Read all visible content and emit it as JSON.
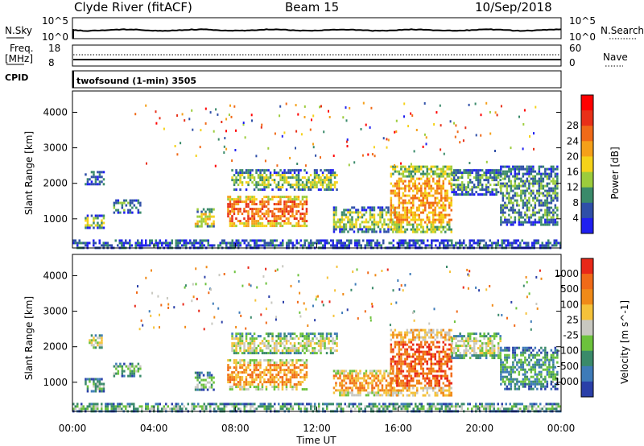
{
  "header": {
    "station": "Clyde River (fitACF)",
    "beam": "Beam 15",
    "date": "10/Sep/2018"
  },
  "top_panels": {
    "nsky_label": "N.Sky",
    "nsky_ticks": [
      "10^5",
      "10^0"
    ],
    "nsearch_label": "N.Search",
    "nsearch_ticks": [
      "10^5",
      "10^0"
    ],
    "freq_label": "Freq.",
    "freq_unit": "[MHz]",
    "freq_ticks": [
      "18",
      "8"
    ],
    "nave_label": "Nave",
    "nave_ticks": [
      "60",
      "0"
    ],
    "cpid_label": "CPID",
    "cpid_text": "twofsound (1-min) 3505"
  },
  "chart_data": [
    {
      "type": "heatmap",
      "name": "power",
      "ylabel": "Slant Range [km]",
      "xlabel": "Time UT",
      "x_ticks": [
        "00:00",
        "04:00",
        "08:00",
        "12:00",
        "16:00",
        "20:00",
        "00:00"
      ],
      "xlim_hours": [
        0,
        24
      ],
      "y_ticks": [
        1000,
        2000,
        3000,
        4000
      ],
      "ylim_km": [
        180,
        4600
      ],
      "colorbar_label": "Power [dB]",
      "colorbar_ticks": [
        "4",
        "8",
        "12",
        "16",
        "20",
        "24",
        "28"
      ],
      "colorbar_colors": [
        "#1f1ff0",
        "#2f4fa8",
        "#3a8a6a",
        "#9ccc3c",
        "#f5d21a",
        "#f5a01a",
        "#f06a18",
        "#e83018",
        "#ff0000"
      ],
      "regions": [
        {
          "t0": 0.6,
          "t1": 1.5,
          "r0": 2000,
          "r1": 2350,
          "level": 1
        },
        {
          "t0": 0.6,
          "t1": 1.5,
          "r0": 760,
          "r1": 1120,
          "level": 3
        },
        {
          "t0": 2.0,
          "t1": 3.3,
          "r0": 1150,
          "r1": 1550,
          "level": 2
        },
        {
          "t0": 6.0,
          "t1": 6.9,
          "r0": 800,
          "r1": 1300,
          "level": 4
        },
        {
          "t0": 7.6,
          "t1": 11.5,
          "r0": 800,
          "r1": 1650,
          "level": 6
        },
        {
          "t0": 7.8,
          "t1": 13.0,
          "r0": 1800,
          "r1": 2400,
          "level": 3
        },
        {
          "t0": 12.8,
          "t1": 16.0,
          "r0": 650,
          "r1": 1350,
          "level": 3
        },
        {
          "t0": 15.6,
          "t1": 18.6,
          "r0": 650,
          "r1": 2500,
          "level": 5
        },
        {
          "t0": 18.6,
          "t1": 21.0,
          "r0": 1700,
          "r1": 2400,
          "level": 2
        },
        {
          "t0": 21.0,
          "t1": 23.8,
          "r0": 800,
          "r1": 2500,
          "level": 2
        },
        {
          "t0": 0.0,
          "t1": 24.0,
          "r0": 200,
          "r1": 420,
          "level": 1
        }
      ]
    },
    {
      "type": "heatmap",
      "name": "velocity",
      "ylabel": "Slant Range [km]",
      "xlabel": "Time UT",
      "x_ticks": [
        "00:00",
        "04:00",
        "08:00",
        "12:00",
        "16:00",
        "20:00",
        "00:00"
      ],
      "xlim_hours": [
        0,
        24
      ],
      "y_ticks": [
        1000,
        2000,
        3000,
        4000
      ],
      "ylim_km": [
        180,
        4600
      ],
      "colorbar_label": "Velocity [m s^-1]",
      "colorbar_ticks": [
        "1000",
        "500",
        "100",
        "25",
        "-25",
        "-100",
        "-500",
        "-1000"
      ],
      "colorbar_colors": [
        "#2a3fa8",
        "#3e7bb8",
        "#3a8a6a",
        "#6cc23c",
        "#c8c8c0",
        "#f5c23a",
        "#f08a18",
        "#f06a18",
        "#e82818"
      ],
      "regions": [
        {
          "t0": 0.6,
          "t1": 1.5,
          "r0": 760,
          "r1": 1120,
          "level": 3
        },
        {
          "t0": 2.0,
          "t1": 3.3,
          "r0": 1150,
          "r1": 1550,
          "level": 3
        },
        {
          "t0": 0.8,
          "t1": 1.4,
          "r0": 2000,
          "r1": 2350,
          "level": 4
        },
        {
          "t0": 6.0,
          "t1": 6.9,
          "r0": 800,
          "r1": 1300,
          "level": 3
        },
        {
          "t0": 7.6,
          "t1": 11.5,
          "r0": 800,
          "r1": 1650,
          "level": 6
        },
        {
          "t0": 7.8,
          "t1": 13.0,
          "r0": 1800,
          "r1": 2400,
          "level": 4
        },
        {
          "t0": 12.8,
          "t1": 16.0,
          "r0": 650,
          "r1": 1350,
          "level": 6
        },
        {
          "t0": 15.6,
          "t1": 18.6,
          "r0": 650,
          "r1": 2500,
          "level": 7
        },
        {
          "t0": 18.6,
          "t1": 21.0,
          "r0": 1700,
          "r1": 2400,
          "level": 4
        },
        {
          "t0": 21.0,
          "t1": 23.8,
          "r0": 800,
          "r1": 2000,
          "level": 2
        },
        {
          "t0": 0.0,
          "t1": 24.0,
          "r0": 200,
          "r1": 420,
          "level": 3
        }
      ]
    }
  ]
}
